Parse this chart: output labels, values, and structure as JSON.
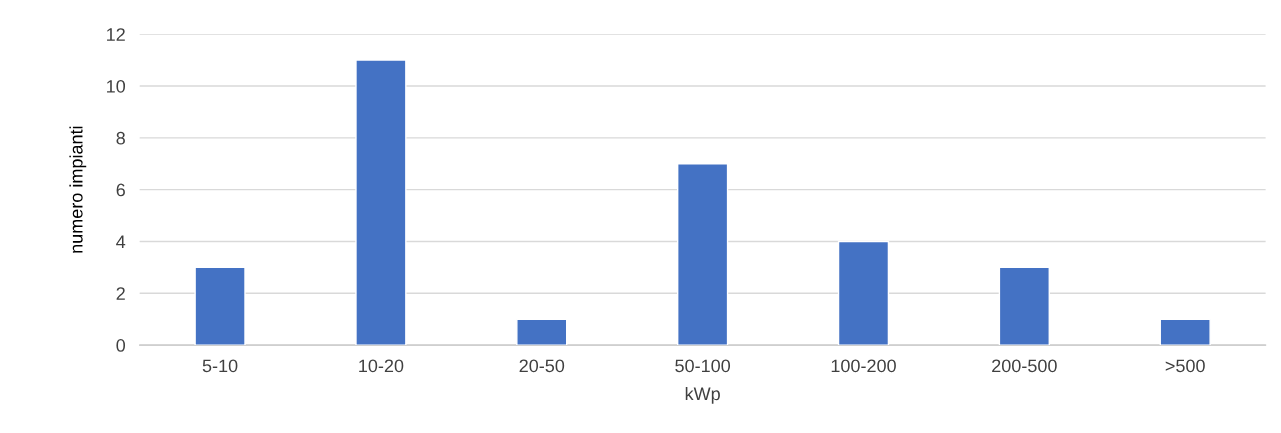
{
  "chart_data": {
    "type": "bar",
    "xlabel": "kWp",
    "ylabel": "numero impianti",
    "categories": [
      "5-10",
      "10-20",
      "20-50",
      "50-100",
      "100-200",
      "200-500",
      ">500"
    ],
    "values": [
      3,
      11,
      1,
      7,
      4,
      3,
      1
    ],
    "color": "#4472c4",
    "ylim": [
      0,
      12
    ],
    "yticks": [
      0,
      2,
      4,
      6,
      8,
      10,
      12
    ],
    "grid": "y",
    "legend": false
  }
}
